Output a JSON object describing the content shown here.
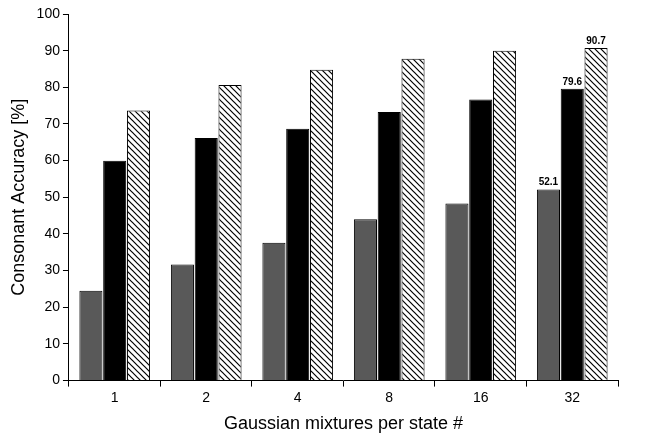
{
  "chart_data": {
    "type": "bar",
    "x_label": "Gaussian mixtures per state #",
    "y_label": "Consonant Accuracy [%]",
    "categories": [
      "1",
      "2",
      "4",
      "8",
      "16",
      "32"
    ],
    "series": [
      {
        "color": "#595959",
        "values": [
          24.5,
          31.7,
          37.6,
          44.0,
          48.3,
          52.1
        ],
        "value_labels": [
          null,
          null,
          null,
          null,
          null,
          "52.1"
        ]
      },
      {
        "color": "#000000",
        "values": [
          60.0,
          66.2,
          68.7,
          73.3,
          76.7,
          79.6
        ],
        "value_labels": [
          null,
          null,
          null,
          null,
          null,
          "79.6"
        ]
      },
      {
        "color": "#ffffff",
        "marker": "hatched",
        "values": [
          73.7,
          80.6,
          84.8,
          87.8,
          90.0,
          90.7
        ],
        "value_labels": [
          null,
          null,
          null,
          null,
          null,
          "90.7"
        ]
      }
    ],
    "ylim": [
      0,
      100
    ],
    "yticks": [
      0,
      10,
      20,
      30,
      40,
      50,
      60,
      70,
      80,
      90,
      100
    ],
    "grid": false,
    "data_labels": true
  }
}
